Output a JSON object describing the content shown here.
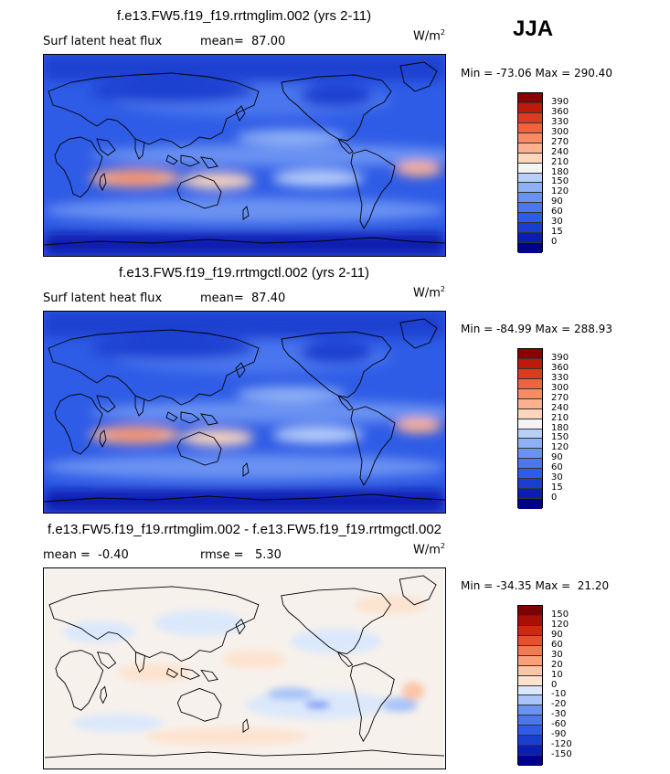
{
  "season": "JJA",
  "panels": [
    {
      "title": "f.e13.FW5.f19_f19.rrtmglim.002 (yrs 2-11)",
      "left_text": "Surf latent heat flux",
      "stat_text": "mean=  87.00",
      "units_base": "W/m",
      "units_exp": "2",
      "minmax": "Min = -73.06 Max = 290.40",
      "kind": "abs"
    },
    {
      "title": "f.e13.FW5.f19_f19.rrtmgctl.002 (yrs 2-11)",
      "left_text": "Surf latent heat flux",
      "stat_text": "mean=  87.40",
      "units_base": "W/m",
      "units_exp": "2",
      "minmax": "Min = -84.99 Max = 288.93",
      "kind": "abs"
    },
    {
      "title": "f.e13.FW5.f19_f19.rrtmglim.002 - f.e13.FW5.f19_f19.rrtmgctl.002",
      "left_text": "mean =  -0.40",
      "stat_text": "rmse =   5.30",
      "units_base": "W/m",
      "units_exp": "2",
      "minmax": "Min = -34.35 Max =  21.20",
      "kind": "diff"
    }
  ],
  "chart_data": [
    {
      "type": "heatmap",
      "title": "f.e13.FW5.f19_f19.rrtmglim.002 (yrs 2-11)",
      "variable": "Surf latent heat flux",
      "units": "W/m2",
      "mean": 87.0,
      "min": -73.06,
      "max": 290.4,
      "colorbar_levels": [
        0,
        15,
        30,
        60,
        90,
        120,
        150,
        180,
        210,
        240,
        270,
        300,
        330,
        360,
        390
      ],
      "colorbar_colors": [
        "#00008a",
        "#0a1fb0",
        "#1a3fd0",
        "#2f5ce6",
        "#4a76ee",
        "#6a92f2",
        "#8eb0f6",
        "#b8cffa",
        "#f4f4f4",
        "#fdd5bb",
        "#fcb08e",
        "#f88b66",
        "#f0633f",
        "#dc3b1f",
        "#bd1a0c",
        "#8b0000"
      ],
      "field": "global surface latent heat flux map"
    },
    {
      "type": "heatmap",
      "title": "f.e13.FW5.f19_f19.rrtmgctl.002 (yrs 2-11)",
      "variable": "Surf latent heat flux",
      "units": "W/m2",
      "mean": 87.4,
      "min": -84.99,
      "max": 288.93,
      "colorbar_levels": [
        0,
        15,
        30,
        60,
        90,
        120,
        150,
        180,
        210,
        240,
        270,
        300,
        330,
        360,
        390
      ],
      "colorbar_colors": [
        "#00008a",
        "#0a1fb0",
        "#1a3fd0",
        "#2f5ce6",
        "#4a76ee",
        "#6a92f2",
        "#8eb0f6",
        "#b8cffa",
        "#f4f4f4",
        "#fdd5bb",
        "#fcb08e",
        "#f88b66",
        "#f0633f",
        "#dc3b1f",
        "#bd1a0c",
        "#8b0000"
      ],
      "field": "global surface latent heat flux map"
    },
    {
      "type": "heatmap",
      "title": "f.e13.FW5.f19_f19.rrtmglim.002 - f.e13.FW5.f19_f19.rrtmgctl.002",
      "units": "W/m2",
      "mean": -0.4,
      "rmse": 5.3,
      "min": -34.35,
      "max": 21.2,
      "colorbar_levels": [
        -150,
        -120,
        -90,
        -60,
        -30,
        -20,
        -10,
        0,
        10,
        20,
        30,
        60,
        90,
        120,
        150
      ],
      "colorbar_colors": [
        "#00008a",
        "#0a1fb0",
        "#1a3fd0",
        "#2f5ce6",
        "#4a76ee",
        "#6a92f2",
        "#a8c4f8",
        "#dbe8fb",
        "#fde3cf",
        "#fcc5a6",
        "#fa9f7a",
        "#f27a52",
        "#e5502e",
        "#cc2a12",
        "#a80f06",
        "#7f0000"
      ],
      "field": "global difference map"
    }
  ]
}
